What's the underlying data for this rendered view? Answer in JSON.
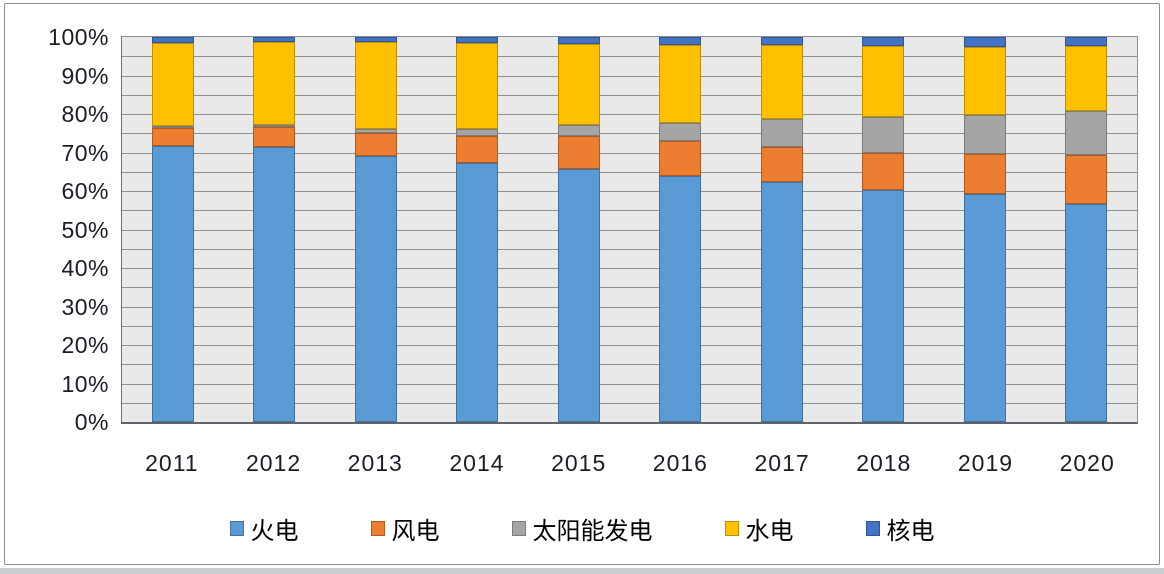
{
  "chart_data": {
    "type": "bar",
    "subtype": "100%-stacked-column",
    "categories": [
      "2011",
      "2012",
      "2013",
      "2014",
      "2015",
      "2016",
      "2017",
      "2018",
      "2019",
      "2020"
    ],
    "series": [
      {
        "name": "火电",
        "color": "#5B9BD5",
        "border": "#41719C",
        "values": [
          72.0,
          71.5,
          69.0,
          67.3,
          65.7,
          64.0,
          62.2,
          60.2,
          59.2,
          56.6
        ]
      },
      {
        "name": "风电",
        "color": "#ED7D31",
        "border": "#AE5A21",
        "values": [
          4.5,
          5.3,
          6.0,
          7.0,
          8.6,
          9.0,
          9.2,
          9.7,
          10.4,
          12.8
        ]
      },
      {
        "name": "太阳能发电",
        "color": "#A5A5A5",
        "border": "#7B7B7B",
        "values": [
          0.2,
          0.3,
          1.2,
          1.8,
          2.8,
          4.7,
          7.3,
          9.2,
          10.2,
          11.5
        ]
      },
      {
        "name": "水电",
        "color": "#FFC000",
        "border": "#BF8F00",
        "values": [
          21.8,
          21.6,
          22.4,
          22.4,
          21.1,
          20.2,
          19.2,
          18.5,
          17.7,
          16.8
        ]
      },
      {
        "name": "核电",
        "color": "#4472C4",
        "border": "#2F5597",
        "values": [
          1.5,
          1.3,
          1.4,
          1.5,
          1.8,
          2.1,
          2.1,
          2.4,
          2.5,
          2.3
        ]
      }
    ],
    "unit": "%",
    "y_axis": {
      "min": 0,
      "max": 100,
      "label_step": 10,
      "minor_gridline_step": 5,
      "tick_labels": [
        "0%",
        "10%",
        "20%",
        "30%",
        "40%",
        "50%",
        "60%",
        "70%",
        "80%",
        "90%",
        "100%"
      ]
    },
    "grid": true,
    "legend_position": "bottom",
    "colors": {
      "plot_background": "#E9E9E9",
      "gridline": "#8F8F8F",
      "axis_line": "#62626C",
      "axis_label": "#1C1C26",
      "frame_border": "#8B8B96"
    }
  }
}
